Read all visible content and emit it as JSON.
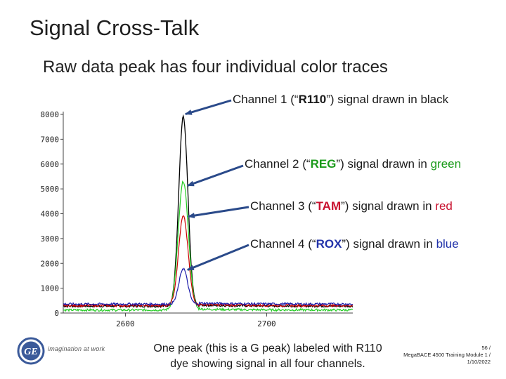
{
  "slide": {
    "title": "Signal Cross-Talk",
    "subtitle": "Raw data peak has four individual color traces",
    "callouts": [
      {
        "pre": "Channel 1 (“",
        "dye": "R110",
        "post": "”) signal drawn in ",
        "color_word": "black"
      },
      {
        "pre": "Channel 2 (“",
        "dye": "REG",
        "post": "”) signal drawn in ",
        "color_word": "green"
      },
      {
        "pre": "Channel 3 (“",
        "dye": "TAM",
        "post": "”) signal drawn in ",
        "color_word": "red"
      },
      {
        "pre": "Channel 4 (“",
        "dye": "ROX",
        "post": "”) signal drawn in ",
        "color_word": "blue"
      }
    ],
    "caption": "One peak (this is a G peak) labeled with R110 dye showing signal in all four channels.",
    "footer_right": {
      "page": "56 /",
      "line2": "MegaBACE 4500 Training Module 1 /",
      "date": "1/10/2022"
    },
    "logo": {
      "text": "GE",
      "tagline": "imagination at work"
    }
  },
  "colors": {
    "channel1": "#000000",
    "channel2": "#22cc22",
    "channel3": "#cc0000",
    "channel4": "#1a1aaa",
    "arrow": "#2a4a8a"
  },
  "chart_data": {
    "type": "line",
    "title": "",
    "xlabel": "",
    "ylabel": "",
    "xlim": [
      2556,
      2761
    ],
    "ylim": [
      0,
      8000
    ],
    "x_ticks": [
      2600,
      2700
    ],
    "y_ticks": [
      0,
      1000,
      2000,
      3000,
      4000,
      5000,
      6000,
      7000,
      8000
    ],
    "peak_x": 2641,
    "series": [
      {
        "name": "Channel 1",
        "color": "#000000",
        "baseline": 280,
        "peak": 7900,
        "width": 3.2
      },
      {
        "name": "Channel 2",
        "color": "#22cc22",
        "baseline": 120,
        "peak": 5300,
        "width": 3.6
      },
      {
        "name": "Channel 3",
        "color": "#cc0000",
        "baseline": 300,
        "peak": 3900,
        "width": 3.4
      },
      {
        "name": "Channel 4",
        "color": "#1a1aaa",
        "baseline": 360,
        "peak": 1800,
        "width": 3.0
      }
    ]
  }
}
